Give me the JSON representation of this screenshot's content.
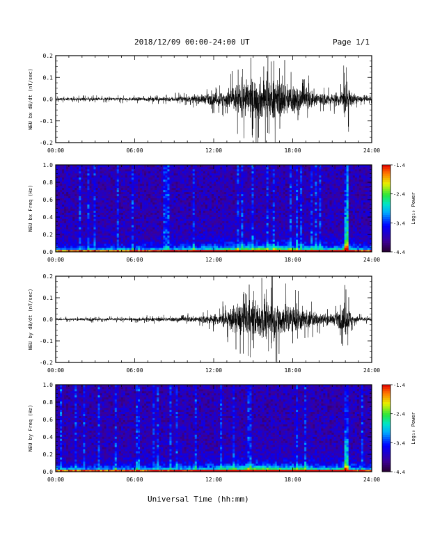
{
  "header": {
    "title": "2018/12/09  00:00-24:00 UT",
    "page": "Page 1/1"
  },
  "xlabel": "Universal Time (hh:mm)",
  "colorbar": {
    "label": "Log₁₀ Power",
    "ticks": [
      "-1.4",
      "-2.4",
      "-3.4",
      "-4.4"
    ]
  },
  "chart_data": [
    {
      "type": "line",
      "title": "",
      "ylabel": "NEU bx dB/dt (nT/sec)",
      "xlabel": "",
      "xticks": [
        "00:00",
        "06:00",
        "12:00",
        "18:00",
        "24:00"
      ],
      "yticks": [
        "-0.2",
        "-0.1",
        "0.0",
        "0.1",
        "0.2"
      ],
      "xlim": [
        0,
        24
      ],
      "ylim": [
        -0.2,
        0.2
      ],
      "series": [
        {
          "color": "#000000",
          "envelope_hours": [
            0,
            2,
            4,
            6,
            8,
            10,
            11,
            12,
            13,
            14,
            15,
            16,
            17,
            18,
            19,
            20,
            21,
            21.8,
            22,
            22.2,
            22.5,
            23,
            24
          ],
          "amplitude": [
            0.012,
            0.014,
            0.015,
            0.016,
            0.02,
            0.028,
            0.04,
            0.055,
            0.09,
            0.17,
            0.19,
            0.2,
            0.18,
            0.15,
            0.11,
            0.07,
            0.05,
            0.1,
            0.2,
            0.14,
            0.06,
            0.03,
            0.018
          ]
        }
      ]
    },
    {
      "type": "heatmap",
      "title": "",
      "ylabel": "NEU bx Freq (Hz)",
      "xlabel": "",
      "xticks": [
        "00:00",
        "06:00",
        "12:00",
        "18:00",
        "24:00"
      ],
      "yticks": [
        "0.0",
        "0.2",
        "0.4",
        "0.6",
        "0.8",
        "1.0"
      ],
      "xlim": [
        0,
        24
      ],
      "ylim": [
        0,
        1
      ],
      "zlim": [
        -4.4,
        -1.4
      ],
      "zlabel": "Log₁₀ Power"
    },
    {
      "type": "line",
      "title": "",
      "ylabel": "NEU by dB/dt (nT/sec)",
      "xlabel": "",
      "xticks": [
        "00:00",
        "06:00",
        "12:00",
        "18:00",
        "24:00"
      ],
      "yticks": [
        "-0.2",
        "-0.1",
        "0.0",
        "0.1",
        "0.2"
      ],
      "xlim": [
        0,
        24
      ],
      "ylim": [
        -0.2,
        0.2
      ],
      "series": [
        {
          "color": "#000000",
          "envelope_hours": [
            0,
            2,
            4,
            6,
            8,
            10,
            11,
            12,
            13,
            14,
            15,
            16,
            17,
            18,
            19,
            20,
            21,
            21.8,
            22,
            22.2,
            22.5,
            23,
            24
          ],
          "amplitude": [
            0.01,
            0.012,
            0.013,
            0.014,
            0.018,
            0.025,
            0.035,
            0.05,
            0.085,
            0.16,
            0.18,
            0.19,
            0.17,
            0.14,
            0.1,
            0.06,
            0.045,
            0.1,
            0.2,
            0.13,
            0.05,
            0.025,
            0.015
          ]
        }
      ]
    },
    {
      "type": "heatmap",
      "title": "",
      "ylabel": "NEU by Freq (Hz)",
      "xlabel": "",
      "xticks": [
        "00:00",
        "06:00",
        "12:00",
        "18:00",
        "24:00"
      ],
      "yticks": [
        "0.0",
        "0.2",
        "0.4",
        "0.6",
        "0.8",
        "1.0"
      ],
      "xlim": [
        0,
        24
      ],
      "ylim": [
        0,
        1
      ],
      "zlim": [
        -4.4,
        -1.4
      ],
      "zlabel": "Log₁₀ Power"
    }
  ]
}
